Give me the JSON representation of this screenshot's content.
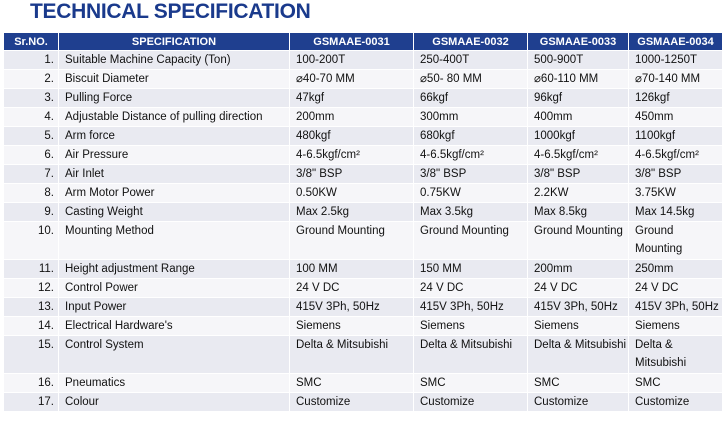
{
  "title": "TECHNICAL SPECIFICATION",
  "headers": [
    "Sr.NO.",
    "SPECIFICATION",
    "GSMAAE-0031",
    "GSMAAE-0032",
    "GSMAAE-0033",
    "GSMAAE-0034"
  ],
  "rows": [
    {
      "sr": "1.",
      "spec": "Suitable Machine Capacity (Ton)",
      "v": [
        "100-200T",
        "250-400T",
        "500-900T",
        "1000-1250T"
      ]
    },
    {
      "sr": "2.",
      "spec": "Biscuit Diameter",
      "v": [
        "⌀40-70 MM",
        "⌀50- 80 MM",
        "⌀60-110 MM",
        "⌀70-140 MM"
      ]
    },
    {
      "sr": "3.",
      "spec": "Pulling Force",
      "v": [
        "47kgf",
        "66kgf",
        "96kgf",
        "126kgf"
      ]
    },
    {
      "sr": "4.",
      "spec": "Adjustable Distance of pulling direction",
      "v": [
        "200mm",
        "300mm",
        "400mm",
        "450mm"
      ]
    },
    {
      "sr": "5.",
      "spec": "Arm force",
      "v": [
        "480kgf",
        "680kgf",
        "1000kgf",
        "1100kgf"
      ]
    },
    {
      "sr": "6.",
      "spec": "Air Pressure",
      "v": [
        "4-6.5kgf/cm²",
        "4-6.5kgf/cm²",
        "4-6.5kgf/cm²",
        "4-6.5kgf/cm²"
      ]
    },
    {
      "sr": "7.",
      "spec": "Air Inlet",
      "v": [
        "3/8\" BSP",
        "3/8\" BSP",
        "3/8\" BSP",
        "3/8\" BSP"
      ]
    },
    {
      "sr": "8.",
      "spec": "Arm Motor Power",
      "v": [
        "0.50KW",
        "0.75KW",
        "2.2KW",
        "3.75KW"
      ]
    },
    {
      "sr": "9.",
      "spec": "Casting Weight",
      "v": [
        "Max 2.5kg",
        "Max 3.5kg",
        "Max 8.5kg",
        "Max 14.5kg"
      ]
    },
    {
      "sr": "10.",
      "spec": "Mounting Method",
      "v": [
        "Ground Mounting",
        "Ground Mounting",
        "Ground Mounting",
        "Ground Mounting"
      ],
      "tall": true
    },
    {
      "sr": "11.",
      "spec": "Height adjustment Range",
      "v": [
        "100 MM",
        "150 MM",
        "200mm",
        "250mm"
      ]
    },
    {
      "sr": "12.",
      "spec": "Control Power",
      "v": [
        "24 V DC",
        "24 V DC",
        "24 V DC",
        "24 V DC"
      ]
    },
    {
      "sr": "13.",
      "spec": "Input Power",
      "v": [
        "415V 3Ph, 50Hz",
        "415V 3Ph, 50Hz",
        "415V 3Ph, 50Hz",
        "415V 3Ph, 50Hz"
      ]
    },
    {
      "sr": "14.",
      "spec": "Electrical Hardware's",
      "v": [
        "Siemens",
        "Siemens",
        "Siemens",
        "Siemens"
      ]
    },
    {
      "sr": "15.",
      "spec": "Control System",
      "v": [
        "Delta & Mitsubishi",
        "Delta & Mitsubishi",
        "Delta & Mitsubishi",
        "Delta & Mitsubishi"
      ],
      "tall": true
    },
    {
      "sr": "16.",
      "spec": "Pneumatics",
      "v": [
        "SMC",
        "SMC",
        "SMC",
        "SMC"
      ]
    },
    {
      "sr": "17.",
      "spec": "Colour",
      "v": [
        "Customize",
        "Customize",
        "Customize",
        "Customize"
      ]
    }
  ]
}
